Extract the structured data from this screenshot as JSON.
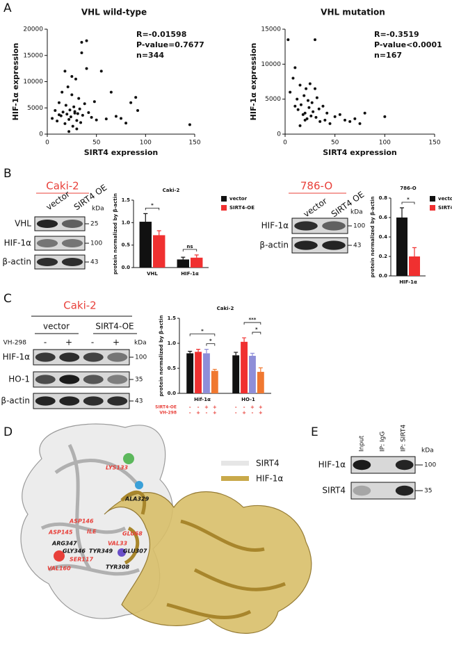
{
  "panels": [
    "A",
    "B",
    "C",
    "D",
    "E"
  ],
  "chart_data": [
    {
      "type": "scatter",
      "title": "VHL wild-type",
      "x_label": "SIRT4 expression",
      "y_label": "HIF-1α expression",
      "annotations": [
        "R=-0.01598",
        "P-value=0.7677",
        "n=344"
      ],
      "color": "#111111",
      "x": [
        5,
        8,
        10,
        12,
        14,
        15,
        16,
        18,
        19,
        20,
        21,
        22,
        23,
        24,
        25,
        26,
        27,
        28,
        29,
        30,
        31,
        32,
        33,
        34,
        35,
        36,
        38,
        40,
        42,
        45,
        48,
        50,
        55,
        60,
        65,
        70,
        75,
        80,
        85,
        90,
        92,
        145,
        35,
        40,
        30,
        25,
        18,
        22,
        28,
        12
      ],
      "y": [
        3000,
        4500,
        2500,
        6000,
        3500,
        8000,
        4200,
        2000,
        5500,
        3800,
        9000,
        2800,
        4600,
        3300,
        7500,
        1500,
        5200,
        4000,
        10500,
        2600,
        3900,
        6800,
        4800,
        2200,
        17500,
        3600,
        5800,
        17800,
        4100,
        3200,
        6200,
        2700,
        12000,
        2900,
        8000,
        3400,
        3000,
        2100,
        6000,
        7000,
        4500,
        1800,
        15500,
        12500,
        1000,
        11000,
        12000,
        500,
        4300,
        3700
      ],
      "xlim": [
        0,
        150
      ],
      "xticks": [
        0,
        50,
        100,
        150
      ],
      "ylim": [
        0,
        20000
      ],
      "yticks": [
        0,
        5000,
        10000,
        15000,
        20000
      ]
    },
    {
      "type": "scatter",
      "title": "VHL mutation",
      "x_label": "SIRT4 expression",
      "y_label": "HIF-1α expression",
      "annotations": [
        "R=-0.3519",
        "P-value<0.0001",
        "n=167"
      ],
      "color": "#111111",
      "x": [
        3,
        5,
        8,
        10,
        12,
        13,
        15,
        16,
        18,
        19,
        20,
        21,
        22,
        23,
        24,
        25,
        26,
        27,
        28,
        30,
        31,
        32,
        34,
        35,
        38,
        40,
        42,
        45,
        50,
        55,
        60,
        65,
        70,
        75,
        80,
        100,
        30,
        10,
        15,
        20
      ],
      "y": [
        13500,
        6000,
        8000,
        9500,
        5000,
        3500,
        7000,
        4200,
        2800,
        5500,
        3000,
        6500,
        2200,
        4800,
        3800,
        7200,
        2600,
        4500,
        3200,
        13500,
        2400,
        5200,
        3600,
        1800,
        4000,
        2000,
        3000,
        1500,
        2500,
        2800,
        2000,
        1800,
        2200,
        1500,
        3000,
        2500,
        6500,
        4000,
        1200,
        2000
      ],
      "xlim": [
        0,
        150
      ],
      "xticks": [
        0,
        50,
        100,
        150
      ],
      "ylim": [
        0,
        15000
      ],
      "yticks": [
        0,
        5000,
        10000,
        15000
      ]
    },
    {
      "type": "bar",
      "title": "Caki-2",
      "y_label": "protein normalized by β-actin",
      "categories": [
        "VHL",
        "HIF-1α"
      ],
      "series": [
        {
          "name": "vector",
          "color": "#111111",
          "values": [
            1.02,
            0.18
          ],
          "errors": [
            0.18,
            0.05
          ]
        },
        {
          "name": "SIRT4-OE",
          "color": "#f03030",
          "values": [
            0.72,
            0.22
          ],
          "errors": [
            0.1,
            0.06
          ]
        }
      ],
      "ylim": [
        0,
        1.5
      ],
      "yticks": [
        {
          "value": 0,
          "label": "0.0"
        },
        {
          "value": 0.5,
          "label": "0.5"
        },
        {
          "value": 1,
          "label": "1.0"
        },
        {
          "value": 1.5,
          "label": "1.5"
        }
      ],
      "significance": [
        "*",
        "ns"
      ]
    },
    {
      "type": "bar",
      "title": "786-O",
      "y_label": "protein normalized by β-actin",
      "categories": [
        "HIF-1α"
      ],
      "series": [
        {
          "name": "vector",
          "color": "#111111",
          "values": [
            0.6
          ],
          "errors": [
            0.1
          ]
        },
        {
          "name": "SIRT4-OE",
          "color": "#f03030",
          "values": [
            0.2
          ],
          "errors": [
            0.09
          ]
        }
      ],
      "ylim": [
        0,
        0.8
      ],
      "yticks": [
        {
          "value": 0,
          "label": "0.0"
        },
        {
          "value": 0.2,
          "label": "0.2"
        },
        {
          "value": 0.4,
          "label": "0.4"
        },
        {
          "value": 0.6,
          "label": "0.6"
        },
        {
          "value": 0.8,
          "label": "0.8"
        }
      ],
      "significance": [
        "*"
      ]
    },
    {
      "type": "bar",
      "title": "Caki-2",
      "y_label": "protein normalized by β-actin",
      "categories": [
        "Hif-1α",
        "HO-1"
      ],
      "series": [
        {
          "color": "#111111",
          "values": [
            0.8,
            0.76
          ],
          "errors": [
            0.04,
            0.06
          ]
        },
        {
          "color": "#f03030",
          "values": [
            0.83,
            1.03
          ],
          "errors": [
            0.05,
            0.08
          ]
        },
        {
          "color": "#8e8ed8",
          "values": [
            0.8,
            0.75
          ],
          "errors": [
            0.08,
            0.05
          ]
        },
        {
          "color": "#f07830",
          "values": [
            0.45,
            0.43
          ],
          "errors": [
            0.03,
            0.08
          ]
        }
      ],
      "ylim": [
        0,
        1.5
      ],
      "yticks": [
        {
          "value": 0,
          "label": "0.0"
        },
        {
          "value": 0.5,
          "label": "0.5"
        },
        {
          "value": 1,
          "label": "1.0"
        },
        {
          "value": 1.5,
          "label": "1.5"
        }
      ],
      "significance": [
        "*",
        "*",
        "***",
        "*"
      ],
      "treatment_rows": [
        {
          "label": "SIRT4-OE",
          "signs": [
            "-",
            "-",
            "+",
            "+",
            "-",
            "-",
            "+",
            "+"
          ]
        },
        {
          "label": "VH-298",
          "signs": [
            "-",
            "+",
            "-",
            "+",
            "-",
            "+",
            "-",
            "+"
          ]
        }
      ]
    }
  ],
  "blots": {
    "b_caki": {
      "cell_line": "Caki-2",
      "lanes": [
        "vector",
        "SIRT4 OE"
      ],
      "rows": [
        "VHL",
        "HIF-1α",
        "β-actin"
      ],
      "markers": [
        25,
        100,
        43
      ],
      "unit": "kDa"
    },
    "b_786": {
      "cell_line": "786-O",
      "lanes": [
        "vector",
        "SIRT4 OE"
      ],
      "rows": [
        "HIF-1α",
        "β-actin"
      ],
      "markers": [
        100,
        43
      ],
      "unit": "kDa"
    },
    "c_caki": {
      "cell_line": "Caki-2",
      "groups": [
        "vector",
        "SIRT4-OE"
      ],
      "treatment": "VH-298",
      "signs": [
        "-",
        "+",
        "-",
        "+"
      ],
      "rows": [
        "HIF-1α",
        "HO-1",
        "β-actin"
      ],
      "markers": [
        100,
        35,
        43
      ],
      "unit": "kDa"
    },
    "e_ip": {
      "lanes": [
        "Input",
        "IP: IgG",
        "IP: SIRT4"
      ],
      "rows": [
        "HIF-1α",
        "SIRT4"
      ],
      "markers": [
        100,
        35
      ],
      "unit": "kDa"
    }
  },
  "structure": {
    "legend": [
      {
        "name": "SIRT4",
        "color": "#e6e6e6"
      },
      {
        "name": "HIF-1α",
        "color": "#c9a94a"
      }
    ],
    "residues": [
      "LYS133",
      "ALA329",
      "ASP146",
      "ASP145",
      "ILE",
      "GLU68",
      "ARG347",
      "VAL33",
      "GLY346",
      "TYR349",
      "GLU307",
      "SER117",
      "TYR308",
      "VAL160"
    ]
  }
}
